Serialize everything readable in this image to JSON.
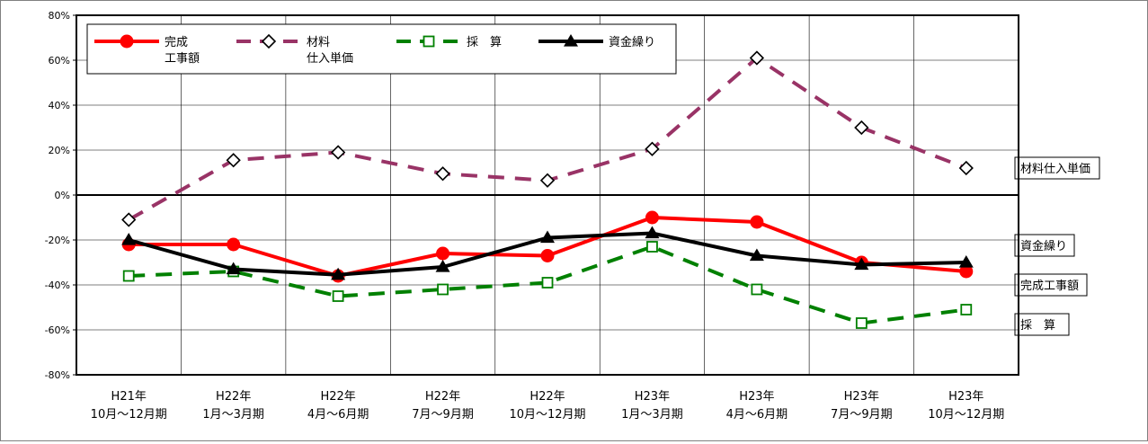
{
  "chart_data": {
    "type": "line",
    "title": "",
    "xlabel": "",
    "ylabel": "",
    "ylim": [
      -80,
      80
    ],
    "y_ticks": [
      "80%",
      "60%",
      "40%",
      "20%",
      "0%",
      "-20%",
      "-40%",
      "-60%",
      "-80%"
    ],
    "y_tick_values": [
      80,
      60,
      40,
      20,
      0,
      -20,
      -40,
      -60,
      -80
    ],
    "grid": "vertical-and-horizontal",
    "categories": [
      {
        "year": "H21年",
        "period": "10月～12月期"
      },
      {
        "year": "H22年",
        "period": "1月～3月期"
      },
      {
        "year": "H22年",
        "period": "4月～6月期"
      },
      {
        "year": "H22年",
        "period": "7月～9月期"
      },
      {
        "year": "H22年",
        "period": "10月～12月期"
      },
      {
        "year": "H23年",
        "period": "1月～3月期"
      },
      {
        "year": "H23年",
        "period": "4月～6月期"
      },
      {
        "year": "H23年",
        "period": "7月～9月期"
      },
      {
        "year": "H23年",
        "period": "10月～12月期"
      }
    ],
    "legend_position": "top-left",
    "series": [
      {
        "name": "完成工事額",
        "legend_lines": [
          "完成",
          "工事額"
        ],
        "end_label": "完成工事額",
        "color": "#ff0000",
        "dash": "solid",
        "marker": "circle-filled",
        "values": [
          -22,
          -22,
          -36,
          -26,
          -27,
          -10,
          -12,
          -30,
          -34
        ]
      },
      {
        "name": "材料仕入単価",
        "legend_lines": [
          "材料",
          "仕入単価"
        ],
        "end_label": "材料仕入単価",
        "color": "#993366",
        "dash": "dashed",
        "marker": "diamond-open",
        "values": [
          -11,
          15.5,
          19,
          9.5,
          6.5,
          20.5,
          61,
          30,
          12
        ]
      },
      {
        "name": "採　算",
        "legend_lines": [
          "採　算"
        ],
        "end_label": "採　算",
        "color": "#008000",
        "dash": "dashed",
        "marker": "square-open",
        "values": [
          -36,
          -34,
          -45,
          -42,
          -39,
          -23,
          -42,
          -57,
          -51
        ]
      },
      {
        "name": "資金繰り",
        "legend_lines": [
          "資金繰り"
        ],
        "end_label": "資金繰り",
        "color": "#000000",
        "dash": "solid",
        "marker": "triangle-filled",
        "values": [
          -20,
          -33,
          -35.5,
          -32,
          -19,
          -17,
          -27,
          -31,
          -30
        ]
      }
    ]
  }
}
